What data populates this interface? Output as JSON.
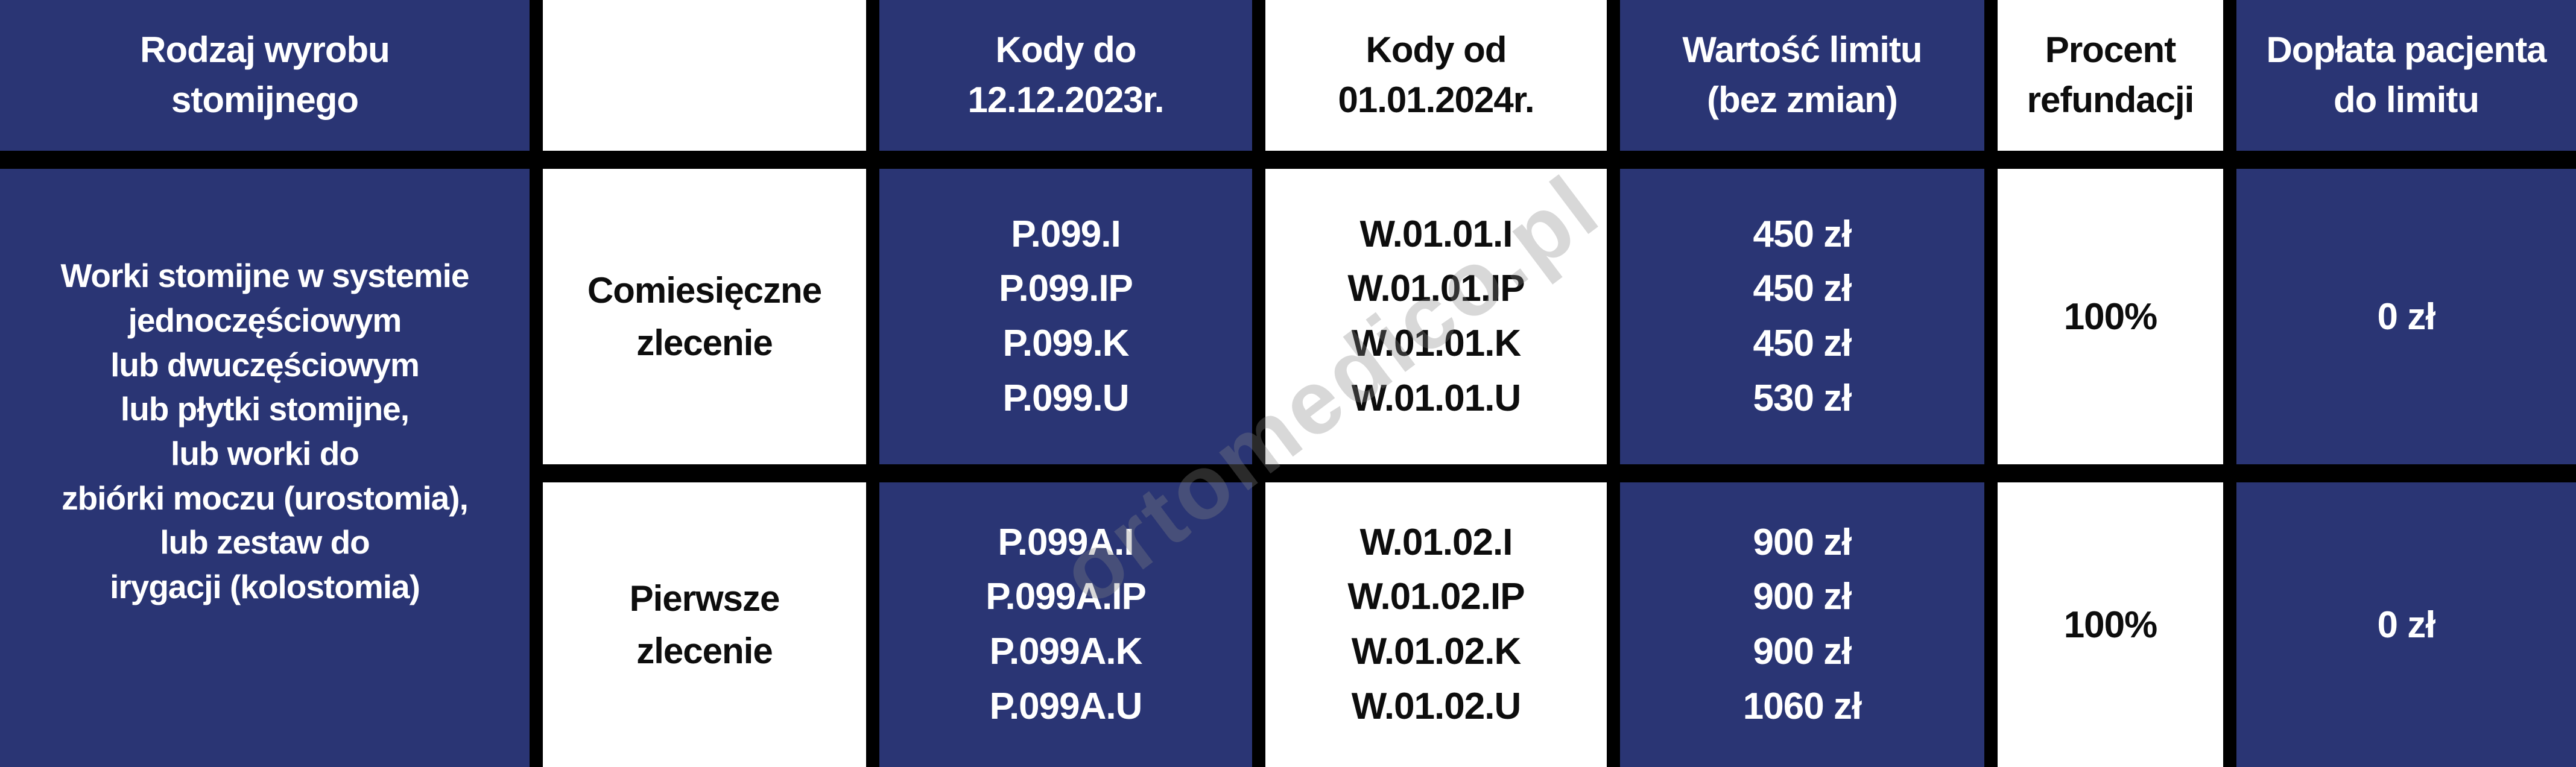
{
  "colors": {
    "navy": "#2A3574",
    "border": "#000000",
    "white": "#FFFFFF",
    "text_dark": "#0D0D0D"
  },
  "watermark": {
    "text": "ortomedico.pl"
  },
  "header": {
    "product_type": [
      "Rodzaj wyrobu",
      "stomijnego"
    ],
    "order_type": "",
    "codes_until": [
      "Kody do",
      "12.12.2023r."
    ],
    "codes_from": [
      "Kody od",
      "01.01.2024r."
    ],
    "limit_value": [
      "Wartość limitu",
      "(bez zmian)"
    ],
    "refund_percent": [
      "Procent",
      "refundacji"
    ],
    "patient_surcharge": [
      "Dopłata pacjenta",
      "do limitu"
    ]
  },
  "product_cell": {
    "lines": [
      "Worki stomijne w systemie",
      "jednoczęściowym",
      "lub dwuczęściowym",
      "lub płytki stomijne,",
      "lub worki do",
      "zbiórki moczu (urostomia),",
      "lub zestaw do",
      "irygacji (kolostomia)"
    ]
  },
  "rows": [
    {
      "order_type": [
        "Comiesięczne",
        "zlecenie"
      ],
      "codes_until": [
        "P.099.I",
        "P.099.IP",
        "P.099.K",
        "P.099.U"
      ],
      "codes_from": [
        "W.01.01.I",
        "W.01.01.IP",
        "W.01.01.K",
        "W.01.01.U"
      ],
      "limit_values": [
        "450 zł",
        "450 zł",
        "450 zł",
        "530 zł"
      ],
      "refund_percent": "100%",
      "patient_surcharge": "0 zł"
    },
    {
      "order_type": [
        "Pierwsze",
        "zlecenie"
      ],
      "codes_until": [
        "P.099A.I",
        "P.099A.IP",
        "P.099A.K",
        "P.099A.U"
      ],
      "codes_from": [
        "W.01.02.I",
        "W.01.02.IP",
        "W.01.02.K",
        "W.01.02.U"
      ],
      "limit_values": [
        "900 zł",
        "900 zł",
        "900 zł",
        "1060 zł"
      ],
      "refund_percent": "100%",
      "patient_surcharge": "0 zł"
    }
  ]
}
